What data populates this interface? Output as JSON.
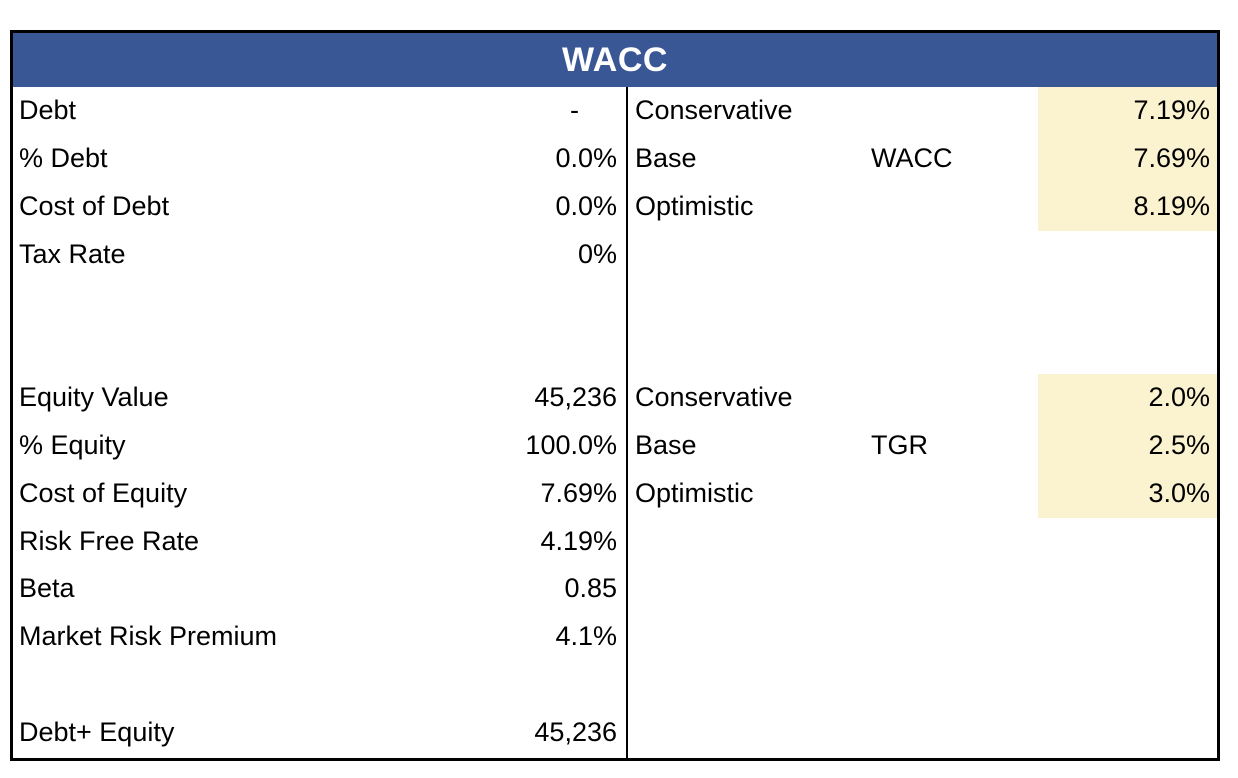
{
  "title": "WACC",
  "colors": {
    "header_bg": "#3A5795",
    "highlight": "#FBF2D0",
    "border": "#000000",
    "text": "#000000",
    "title_text": "#FFFFFF"
  },
  "left_rows": [
    {
      "label": "Debt",
      "value": "-"
    },
    {
      "label": "% Debt",
      "value": "0.0%"
    },
    {
      "label": "Cost of Debt",
      "value": "0.0%"
    },
    {
      "label": "Tax Rate",
      "value": "0%"
    },
    {
      "label": "",
      "value": ""
    },
    {
      "label": "",
      "value": ""
    },
    {
      "label": "Equity Value",
      "value": "45,236"
    },
    {
      "label": "% Equity",
      "value": "100.0%"
    },
    {
      "label": "Cost of Equity",
      "value": "7.69%"
    },
    {
      "label": "Risk Free Rate",
      "value": "4.19%"
    },
    {
      "label": "Beta",
      "value": "0.85"
    },
    {
      "label": "Market Risk Premium",
      "value": "4.1%"
    },
    {
      "label": "",
      "value": ""
    },
    {
      "label": "Debt+ Equity",
      "value": "45,236"
    }
  ],
  "right_rows": [
    {
      "label": "Conservative",
      "mid": "",
      "value": "7.19%",
      "highlight": true
    },
    {
      "label": "Base",
      "mid": "WACC",
      "value": "7.69%",
      "highlight": true
    },
    {
      "label": "Optimistic",
      "mid": "",
      "value": "8.19%",
      "highlight": true
    },
    {
      "label": "",
      "mid": "",
      "value": "",
      "highlight": false
    },
    {
      "label": "",
      "mid": "",
      "value": "",
      "highlight": false
    },
    {
      "label": "",
      "mid": "",
      "value": "",
      "highlight": false
    },
    {
      "label": "Conservative",
      "mid": "",
      "value": "2.0%",
      "highlight": true
    },
    {
      "label": "Base",
      "mid": "TGR",
      "value": "2.5%",
      "highlight": true
    },
    {
      "label": "Optimistic",
      "mid": "",
      "value": "3.0%",
      "highlight": true
    },
    {
      "label": "",
      "mid": "",
      "value": "",
      "highlight": false
    },
    {
      "label": "",
      "mid": "",
      "value": "",
      "highlight": false
    },
    {
      "label": "",
      "mid": "",
      "value": "",
      "highlight": false
    },
    {
      "label": "",
      "mid": "",
      "value": "",
      "highlight": false
    },
    {
      "label": "",
      "mid": "",
      "value": "",
      "highlight": false
    }
  ]
}
